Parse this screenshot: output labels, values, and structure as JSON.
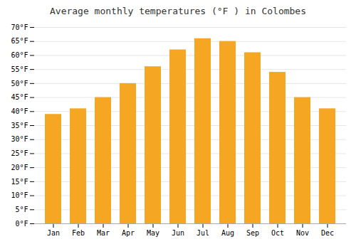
{
  "chart_data": {
    "type": "bar",
    "title": "Average monthly temperatures (°F ) in Colombes",
    "categories": [
      "Jan",
      "Feb",
      "Mar",
      "Apr",
      "May",
      "Jun",
      "Jul",
      "Aug",
      "Sep",
      "Oct",
      "Nov",
      "Dec"
    ],
    "values": [
      39,
      41,
      45,
      50,
      56,
      62,
      66,
      65,
      61,
      54,
      45,
      41
    ],
    "color": "#F5A623",
    "ylim": [
      0,
      70
    ],
    "yticks": [
      {
        "value": 0,
        "label": "0°F"
      },
      {
        "value": 5,
        "label": "5°F"
      },
      {
        "value": 10,
        "label": "10°F"
      },
      {
        "value": 15,
        "label": "15°F"
      },
      {
        "value": 20,
        "label": "20°F"
      },
      {
        "value": 25,
        "label": "25°F"
      },
      {
        "value": 30,
        "label": "30°F"
      },
      {
        "value": 35,
        "label": "35°F"
      },
      {
        "value": 40,
        "label": "40°F"
      },
      {
        "value": 45,
        "label": "45°F"
      },
      {
        "value": 50,
        "label": "50°F"
      },
      {
        "value": 55,
        "label": "55°F"
      },
      {
        "value": 60,
        "label": "60°F"
      },
      {
        "value": 65,
        "label": "65°F"
      },
      {
        "value": 70,
        "label": "70°F"
      }
    ],
    "grid": true
  }
}
